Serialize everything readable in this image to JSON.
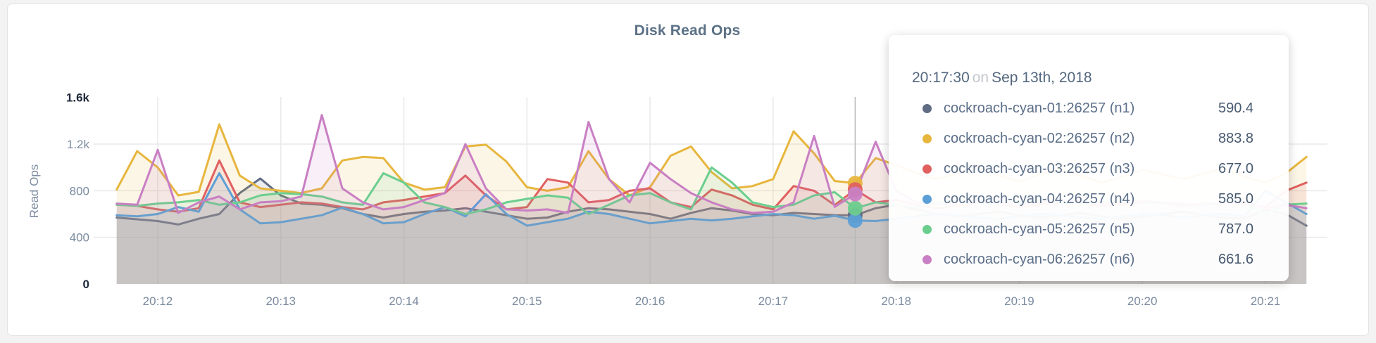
{
  "panel": {
    "title": "Disk Read Ops"
  },
  "colors": {
    "title": "#5b7186",
    "axis_text": "#7b8b9f",
    "axis_text_emphasis": "#20293a",
    "grid": "#e9e9eb",
    "hover_line": "#b9b9b9"
  },
  "chart_data": {
    "type": "line",
    "title": "Disk Read Ops",
    "xlabel": "",
    "ylabel": "Read Ops",
    "ylim": [
      0,
      1600
    ],
    "grid": "on",
    "legend_position": "tooltip-overlay",
    "x_start": "20:11:40",
    "x_end": "20:21:20",
    "sample_interval_seconds": 10,
    "x_ticks": [
      {
        "label": "20:12",
        "index": 2
      },
      {
        "label": "20:13",
        "index": 8
      },
      {
        "label": "20:14",
        "index": 14
      },
      {
        "label": "20:15",
        "index": 20
      },
      {
        "label": "20:16",
        "index": 26
      },
      {
        "label": "20:17",
        "index": 32
      },
      {
        "label": "20:18",
        "index": 38
      },
      {
        "label": "20:19",
        "index": 44
      },
      {
        "label": "20:20",
        "index": 50
      },
      {
        "label": "20:21",
        "index": 56
      }
    ],
    "y_ticks": [
      {
        "label": "1.6k",
        "value": 1600,
        "emphasis": true,
        "gridline": false
      },
      {
        "label": "1.2k",
        "value": 1200,
        "emphasis": false,
        "gridline": true
      },
      {
        "label": "800",
        "value": 800,
        "emphasis": false,
        "gridline": true
      },
      {
        "label": "400",
        "value": 400,
        "emphasis": false,
        "gridline": true
      },
      {
        "label": "0",
        "value": 0,
        "emphasis": true,
        "gridline": false
      }
    ],
    "series": [
      {
        "name": "cockroach-cyan-01:26257 (n1)",
        "node": "n1",
        "color": "#5f6c84",
        "values": [
          570,
          555,
          540,
          510,
          560,
          600,
          780,
          905,
          760,
          690,
          680,
          650,
          600,
          570,
          600,
          620,
          630,
          650,
          620,
          590,
          560,
          570,
          620,
          650,
          640,
          620,
          600,
          560,
          610,
          650,
          630,
          600,
          590,
          610,
          600,
          590.4,
          590,
          650,
          680,
          640,
          600,
          580,
          600,
          620,
          590,
          570,
          590,
          610,
          580,
          560,
          580,
          600,
          620,
          590,
          570,
          560,
          640,
          600,
          500
        ]
      },
      {
        "name": "cockroach-cyan-02:26257 (n2)",
        "node": "n2",
        "color": "#e7b63d",
        "values": [
          810,
          1140,
          1000,
          760,
          790,
          1370,
          930,
          820,
          800,
          780,
          820,
          1060,
          1090,
          1080,
          870,
          810,
          830,
          1180,
          1195,
          1050,
          830,
          800,
          830,
          1140,
          900,
          760,
          830,
          1100,
          1180,
          960,
          820,
          840,
          900,
          1310,
          1120,
          883.8,
          865,
          1080,
          1020,
          950,
          900,
          950,
          1000,
          930,
          880,
          940,
          990,
          930,
          870,
          920,
          980,
          940,
          900,
          950,
          990,
          920,
          870,
          950,
          1090
        ]
      },
      {
        "name": "cockroach-cyan-03:26257 (n3)",
        "node": "n3",
        "color": "#e06060",
        "values": [
          680,
          670,
          640,
          620,
          650,
          1060,
          700,
          660,
          680,
          700,
          690,
          660,
          640,
          700,
          720,
          750,
          780,
          930,
          760,
          640,
          660,
          900,
          870,
          700,
          720,
          800,
          820,
          700,
          660,
          810,
          760,
          680,
          640,
          840,
          800,
          677.0,
          810,
          700,
          720,
          680,
          650,
          670,
          700,
          680,
          660,
          680,
          700,
          690,
          670,
          680,
          700,
          690,
          670,
          690,
          700,
          680,
          660,
          800,
          870
        ]
      },
      {
        "name": "cockroach-cyan-04:26257 (n4)",
        "node": "n4",
        "color": "#5c9fd6",
        "values": [
          590,
          580,
          600,
          660,
          620,
          950,
          640,
          520,
          530,
          560,
          590,
          655,
          600,
          520,
          530,
          600,
          660,
          580,
          770,
          600,
          500,
          530,
          560,
          620,
          600,
          560,
          520,
          540,
          560,
          545,
          560,
          580,
          600,
          590,
          560,
          585.0,
          545,
          540,
          560,
          580,
          600,
          590,
          570,
          560,
          580,
          600,
          590,
          570,
          560,
          580,
          600,
          590,
          570,
          590,
          600,
          580,
          800,
          700,
          600
        ]
      },
      {
        "name": "cockroach-cyan-05:26257 (n5)",
        "node": "n5",
        "color": "#6bce8e",
        "values": [
          680,
          670,
          690,
          700,
          720,
          680,
          700,
          760,
          780,
          770,
          750,
          700,
          680,
          950,
          870,
          700,
          660,
          600,
          640,
          700,
          730,
          760,
          740,
          600,
          680,
          760,
          780,
          700,
          640,
          1000,
          870,
          700,
          660,
          680,
          760,
          787.0,
          650,
          700,
          680,
          660,
          700,
          720,
          700,
          680,
          700,
          720,
          700,
          690,
          700,
          710,
          700,
          690,
          680,
          690,
          700,
          690,
          600,
          680,
          690
        ]
      },
      {
        "name": "cockroach-cyan-06:26257 (n6)",
        "node": "n6",
        "color": "#c97fc3",
        "values": [
          690,
          680,
          1150,
          610,
          700,
          750,
          640,
          700,
          710,
          750,
          1450,
          820,
          700,
          640,
          660,
          720,
          780,
          1200,
          820,
          640,
          630,
          640,
          610,
          1390,
          900,
          700,
          1040,
          900,
          780,
          700,
          640,
          610,
          620,
          700,
          1270,
          661.6,
          772,
          1220,
          800,
          700,
          680,
          700,
          720,
          700,
          680,
          700,
          720,
          710,
          690,
          700,
          710,
          700,
          690,
          680,
          690,
          700,
          650,
          680,
          650
        ]
      }
    ]
  },
  "hover": {
    "guideline_index": 36,
    "tooltip_index": 35
  },
  "tooltip": {
    "time": "20:17:30",
    "conjunction": "on",
    "date": "Sep 13th, 2018",
    "rows": [
      {
        "label": "cockroach-cyan-01:26257 (n1)",
        "value": "590.4",
        "color": "#5f6c84"
      },
      {
        "label": "cockroach-cyan-02:26257 (n2)",
        "value": "883.8",
        "color": "#e7b63d"
      },
      {
        "label": "cockroach-cyan-03:26257 (n3)",
        "value": "677.0",
        "color": "#e06060"
      },
      {
        "label": "cockroach-cyan-04:26257 (n4)",
        "value": "585.0",
        "color": "#5c9fd6"
      },
      {
        "label": "cockroach-cyan-05:26257 (n5)",
        "value": "787.0",
        "color": "#6bce8e"
      },
      {
        "label": "cockroach-cyan-06:26257 (n6)",
        "value": "661.6",
        "color": "#c97fc3"
      }
    ]
  }
}
